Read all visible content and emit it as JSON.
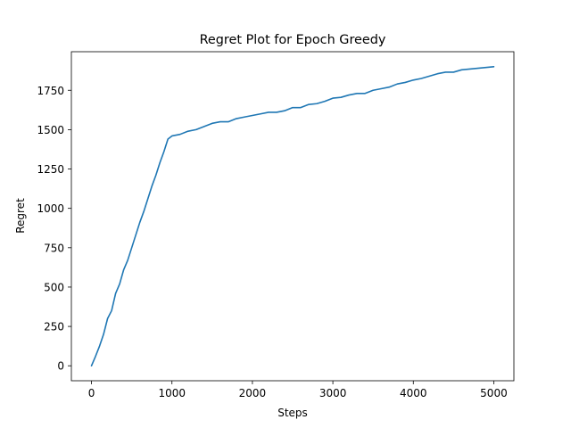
{
  "chart_data": {
    "type": "line",
    "title": "Regret Plot for Epoch Greedy",
    "xlabel": "Steps",
    "ylabel": "Regret",
    "xlim": [
      -250,
      5250
    ],
    "ylim": [
      -95,
      1995
    ],
    "xticks": [
      0,
      1000,
      2000,
      3000,
      4000,
      5000
    ],
    "yticks": [
      0,
      250,
      500,
      750,
      1000,
      1250,
      1500,
      1750
    ],
    "grid": false,
    "legend": "none",
    "series": [
      {
        "color": "#1f77b4",
        "x": [
          0,
          50,
          100,
          150,
          200,
          250,
          300,
          350,
          400,
          450,
          500,
          550,
          600,
          650,
          700,
          750,
          800,
          850,
          900,
          950,
          1000,
          1100,
          1200,
          1300,
          1400,
          1500,
          1600,
          1700,
          1800,
          1900,
          2000,
          2100,
          2200,
          2300,
          2400,
          2500,
          2600,
          2700,
          2800,
          2900,
          3000,
          3100,
          3200,
          3300,
          3400,
          3500,
          3600,
          3700,
          3800,
          3900,
          4000,
          4100,
          4200,
          4300,
          4400,
          4500,
          4600,
          4700,
          4800,
          4900,
          5000
        ],
        "y": [
          0,
          60,
          125,
          200,
          300,
          350,
          460,
          520,
          610,
          670,
          750,
          830,
          910,
          980,
          1060,
          1140,
          1210,
          1290,
          1360,
          1440,
          1460,
          1470,
          1490,
          1500,
          1520,
          1540,
          1550,
          1550,
          1570,
          1580,
          1590,
          1600,
          1610,
          1610,
          1620,
          1640,
          1640,
          1660,
          1665,
          1680,
          1700,
          1705,
          1720,
          1730,
          1730,
          1750,
          1760,
          1770,
          1790,
          1800,
          1815,
          1825,
          1840,
          1855,
          1865,
          1865,
          1880,
          1885,
          1890,
          1895,
          1900
        ]
      }
    ]
  }
}
